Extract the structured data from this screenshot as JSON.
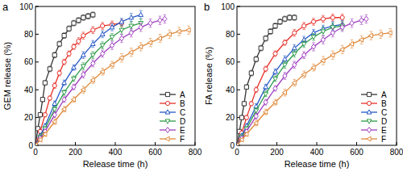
{
  "chart_data": [
    {
      "type": "line",
      "title": "a",
      "x_label": "Release time (h)",
      "y_label": "GEM release (%)",
      "xlim": [
        0,
        800
      ],
      "xticks": [
        0,
        200,
        400,
        600,
        800
      ],
      "ylim": [
        0,
        100
      ],
      "yticks": [
        0,
        20,
        40,
        60,
        80,
        100
      ],
      "legend": "lower right",
      "series": [
        {
          "name": "A",
          "color": "#333333",
          "marker": "square",
          "x": [
            0,
            12,
            24,
            36,
            48,
            72,
            96,
            120,
            144,
            168,
            192,
            216,
            240,
            264,
            288
          ],
          "values": [
            0,
            12,
            22,
            33,
            45,
            55,
            65,
            73,
            79,
            84,
            88,
            90,
            92,
            93,
            94
          ],
          "errors": [
            0,
            1,
            1,
            1.5,
            1.5,
            2,
            2,
            2,
            2,
            2,
            2,
            2,
            2,
            2,
            2
          ]
        },
        {
          "name": "B",
          "color": "#e8312a",
          "marker": "circle",
          "x": [
            0,
            24,
            48,
            72,
            96,
            120,
            144,
            168,
            192,
            216,
            240,
            288,
            336,
            384,
            432
          ],
          "values": [
            0,
            10,
            22,
            34,
            43,
            52,
            60,
            66,
            71,
            75,
            79,
            83,
            86,
            87,
            88
          ],
          "errors": [
            0,
            1,
            1.5,
            1.5,
            2,
            2,
            2,
            2,
            2,
            2.5,
            2.5,
            2.5,
            2.5,
            2.5,
            2.5
          ]
        },
        {
          "name": "C",
          "color": "#2457c5",
          "marker": "triangle-up",
          "x": [
            0,
            24,
            48,
            96,
            144,
            192,
            240,
            288,
            336,
            384,
            432,
            480,
            528
          ],
          "values": [
            0,
            7,
            14,
            30,
            45,
            56,
            65,
            73,
            80,
            85,
            89,
            92,
            94
          ],
          "errors": [
            0,
            1,
            1.5,
            2,
            2,
            2,
            2.5,
            2.5,
            2.5,
            2.5,
            2.5,
            3,
            3
          ]
        },
        {
          "name": "D",
          "color": "#2e9b4a",
          "marker": "triangle-down",
          "x": [
            0,
            24,
            48,
            96,
            144,
            192,
            240,
            288,
            336,
            384,
            432,
            480,
            528
          ],
          "values": [
            0,
            6,
            12,
            26,
            38,
            48,
            57,
            65,
            72,
            78,
            83,
            86,
            88
          ],
          "errors": [
            0,
            1,
            1.5,
            2,
            2,
            2,
            2.5,
            2.5,
            2.5,
            2.5,
            3,
            3,
            3
          ]
        },
        {
          "name": "E",
          "color": "#a040c0",
          "marker": "diamond",
          "x": [
            0,
            24,
            48,
            96,
            144,
            192,
            240,
            288,
            336,
            384,
            432,
            480,
            528,
            576,
            624,
            648
          ],
          "values": [
            0,
            5,
            10,
            22,
            33,
            42,
            51,
            59,
            66,
            72,
            77,
            81,
            85,
            88,
            90,
            91
          ],
          "errors": [
            0,
            1,
            1.5,
            2,
            2,
            2,
            2.5,
            2.5,
            2.5,
            3,
            3,
            3,
            3,
            3,
            3,
            3
          ]
        },
        {
          "name": "F",
          "color": "#e08a3c",
          "marker": "triangle-left",
          "x": [
            0,
            24,
            48,
            96,
            144,
            192,
            240,
            288,
            336,
            384,
            432,
            480,
            528,
            576,
            624,
            672,
            720,
            768
          ],
          "values": [
            0,
            4,
            8,
            17,
            26,
            33,
            40,
            47,
            53,
            58,
            63,
            67,
            71,
            74,
            77,
            80,
            82,
            83
          ],
          "errors": [
            0,
            1,
            1.5,
            2,
            2,
            2,
            2.5,
            2.5,
            2.5,
            2.5,
            3,
            3,
            3,
            3,
            3,
            3,
            3,
            3
          ]
        }
      ]
    },
    {
      "type": "line",
      "title": "b",
      "x_label": "Release time (h)",
      "y_label": "FA release (%)",
      "xlim": [
        0,
        800
      ],
      "xticks": [
        0,
        200,
        400,
        600,
        800
      ],
      "ylim": [
        0,
        100
      ],
      "yticks": [
        0,
        20,
        40,
        60,
        80,
        100
      ],
      "legend": "lower right",
      "series": [
        {
          "name": "A",
          "color": "#333333",
          "marker": "square",
          "x": [
            0,
            12,
            24,
            36,
            48,
            72,
            96,
            120,
            144,
            168,
            192,
            216,
            240,
            264,
            288
          ],
          "values": [
            0,
            10,
            20,
            30,
            42,
            52,
            62,
            70,
            77,
            82,
            86,
            89,
            91,
            92,
            92
          ],
          "errors": [
            0,
            1,
            1,
            1.5,
            1.5,
            2,
            2,
            2,
            2,
            2,
            2,
            2,
            2,
            2,
            2
          ]
        },
        {
          "name": "B",
          "color": "#e8312a",
          "marker": "circle",
          "x": [
            0,
            24,
            48,
            72,
            96,
            144,
            192,
            240,
            288,
            336,
            384,
            432,
            480,
            528
          ],
          "values": [
            0,
            9,
            20,
            30,
            40,
            55,
            66,
            74,
            81,
            86,
            89,
            91,
            92,
            92
          ],
          "errors": [
            0,
            1,
            1.5,
            1.5,
            2,
            2,
            2,
            2,
            2.5,
            2.5,
            2.5,
            2.5,
            2.5,
            2.5
          ]
        },
        {
          "name": "C",
          "color": "#2457c5",
          "marker": "triangle-up",
          "x": [
            0,
            24,
            48,
            96,
            144,
            192,
            240,
            288,
            336,
            384,
            432,
            480,
            528
          ],
          "values": [
            0,
            7,
            14,
            28,
            42,
            53,
            62,
            70,
            76,
            81,
            84,
            86,
            87
          ],
          "errors": [
            0,
            1,
            1.5,
            2,
            2,
            2,
            2.5,
            2.5,
            2.5,
            2.5,
            2.5,
            3,
            3
          ]
        },
        {
          "name": "D",
          "color": "#2e9b4a",
          "marker": "triangle-down",
          "x": [
            0,
            24,
            48,
            96,
            144,
            192,
            240,
            288,
            336,
            384,
            432,
            480,
            528
          ],
          "values": [
            0,
            6,
            12,
            25,
            37,
            48,
            58,
            66,
            73,
            78,
            82,
            85,
            86
          ],
          "errors": [
            0,
            1,
            1.5,
            2,
            2,
            2,
            2.5,
            2.5,
            2.5,
            2.5,
            3,
            3,
            3
          ]
        },
        {
          "name": "E",
          "color": "#a040c0",
          "marker": "diamond",
          "x": [
            0,
            24,
            48,
            96,
            144,
            192,
            240,
            288,
            336,
            384,
            432,
            480,
            528,
            576,
            624,
            648
          ],
          "values": [
            0,
            5,
            10,
            21,
            31,
            41,
            50,
            58,
            65,
            71,
            76,
            81,
            85,
            88,
            90,
            91
          ],
          "errors": [
            0,
            1,
            1.5,
            2,
            2,
            2,
            2.5,
            2.5,
            2.5,
            3,
            3,
            3,
            3,
            3,
            3,
            3
          ]
        },
        {
          "name": "F",
          "color": "#e08a3c",
          "marker": "triangle-left",
          "x": [
            0,
            24,
            48,
            96,
            144,
            192,
            240,
            288,
            336,
            384,
            432,
            480,
            528,
            576,
            624,
            672,
            720,
            768
          ],
          "values": [
            0,
            4,
            8,
            16,
            24,
            31,
            38,
            45,
            51,
            56,
            61,
            65,
            69,
            73,
            76,
            79,
            80,
            81
          ],
          "errors": [
            0,
            1,
            1.5,
            2,
            2,
            2,
            2.5,
            2.5,
            2.5,
            2.5,
            3,
            3,
            3,
            3,
            3,
            3,
            3,
            3
          ]
        }
      ]
    }
  ]
}
